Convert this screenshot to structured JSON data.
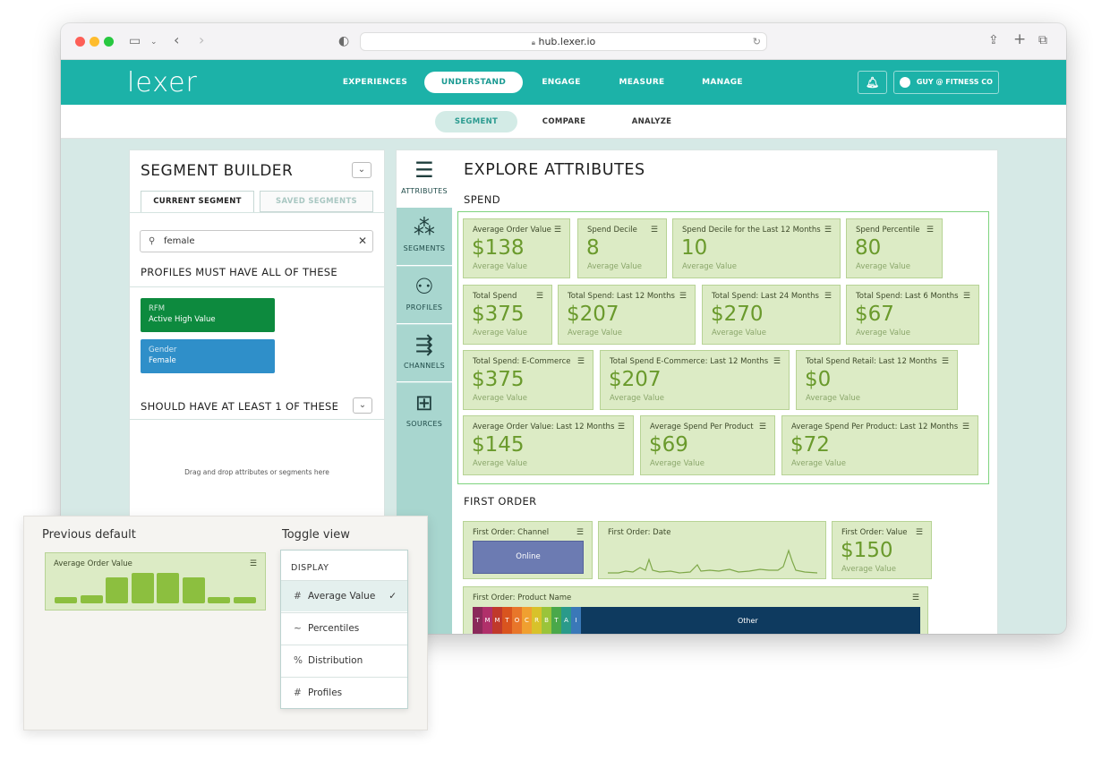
{
  "browser": {
    "url": "hub.lexer.io"
  },
  "app": {
    "logo": "lexer",
    "nav": [
      "EXPERIENCES",
      "UNDERSTAND",
      "ENGAGE",
      "MEASURE",
      "MANAGE"
    ],
    "active_nav": "UNDERSTAND",
    "account": "GUY @ FITNESS CO",
    "subnav": [
      "SEGMENT",
      "COMPARE",
      "ANALYZE"
    ],
    "active_subnav": "SEGMENT"
  },
  "segment_builder": {
    "title": "SEGMENT BUILDER",
    "tabs": [
      "CURRENT SEGMENT",
      "SAVED SEGMENTS"
    ],
    "search_value": "female",
    "must_have_label": "PROFILES MUST HAVE ALL OF THESE",
    "chips": [
      {
        "key": "RFM",
        "value": "Active High Value",
        "color": "#0d8a3e"
      },
      {
        "key": "Gender",
        "value": "Female",
        "color": "#2f8fc9"
      }
    ],
    "should_have_label": "SHOULD HAVE AT LEAST 1 OF THESE",
    "drop_hint": "Drag and drop attributes or segments here"
  },
  "explore": {
    "title": "EXPLORE ATTRIBUTES",
    "side_tabs": [
      "ATTRIBUTES",
      "SEGMENTS",
      "PROFILES",
      "CHANNELS",
      "SOURCES"
    ],
    "spend_label": "SPEND",
    "spend_cards": [
      {
        "label": "Average Order Value",
        "value": "$138",
        "sub": "Average Value"
      },
      {
        "label": "Spend Decile",
        "value": "8",
        "sub": "Average Value"
      },
      {
        "label": "Spend Decile for the Last 12 Months",
        "value": "10",
        "sub": "Average Value"
      },
      {
        "label": "Spend Percentile",
        "value": "80",
        "sub": "Average Value"
      },
      {
        "label": "Total Spend",
        "value": "$375",
        "sub": "Average Value"
      },
      {
        "label": "Total Spend: Last 12 Months",
        "value": "$207",
        "sub": "Average Value"
      },
      {
        "label": "Total Spend: Last 24 Months",
        "value": "$270",
        "sub": "Average Value"
      },
      {
        "label": "Total Spend: Last 6 Months",
        "value": "$67",
        "sub": "Average Value"
      },
      {
        "label": "Total Spend: E-Commerce",
        "value": "$375",
        "sub": "Average Value"
      },
      {
        "label": "Total Spend E-Commerce: Last 12 Months",
        "value": "$207",
        "sub": "Average Value"
      },
      {
        "label": "Total Spend Retail: Last 12 Months",
        "value": "$0",
        "sub": "Average Value"
      },
      {
        "label": "Average Order Value: Last 12 Months",
        "value": "$145",
        "sub": "Average Value"
      },
      {
        "label": "Average Spend Per Product",
        "value": "$69",
        "sub": "Average Value"
      },
      {
        "label": "Average Spend Per Product: Last 12 Months",
        "value": "$72",
        "sub": "Average Value"
      }
    ],
    "first_order_label": "FIRST ORDER",
    "first_order": {
      "channel_label": "First Order: Channel",
      "channel_bar": "Online",
      "date_label": "First Order: Date",
      "value_label": "First Order: Value",
      "value": "$150",
      "value_sub": "Average Value",
      "product_label": "First Order: Product Name",
      "product_letters": [
        "T",
        "M",
        "M",
        "T",
        "O",
        "C",
        "R",
        "B",
        "T",
        "A",
        "I"
      ],
      "product_other": "Other"
    }
  },
  "callout": {
    "previous_label": "Previous default",
    "toggle_label": "Toggle view",
    "card_label": "Average Order Value",
    "histogram_levels": [
      0.2,
      0.25,
      0.85,
      1.0,
      1.0,
      0.85,
      0.2,
      0.2
    ],
    "menu_header": "DISPLAY",
    "menu_items": [
      "Average Value",
      "Percentiles",
      "Distribution",
      "Profiles"
    ],
    "menu_glyphs": [
      "#",
      "~",
      "%",
      "#"
    ],
    "active_item": "Average Value"
  },
  "colors": {
    "brand_teal": "#1cb2a8",
    "card_green": "#dcebc5",
    "value_green": "#6a9a2c",
    "product_navy": "#0e3a5f"
  }
}
